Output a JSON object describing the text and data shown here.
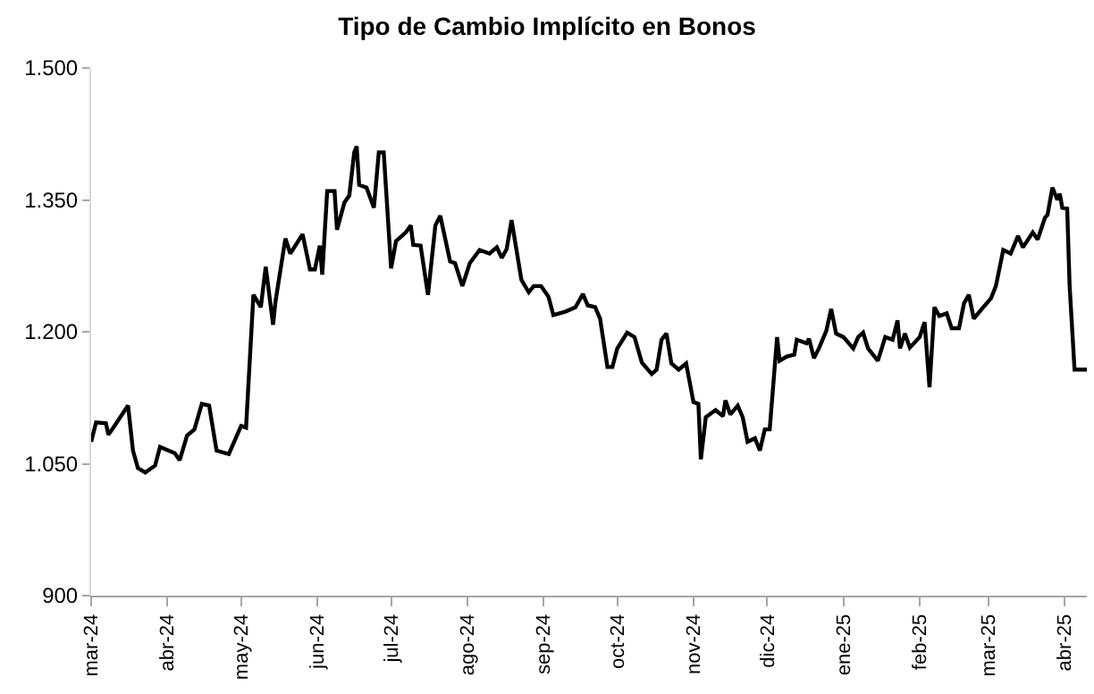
{
  "chart_data": {
    "type": "line",
    "title": "Tipo de Cambio Implícito en Bonos",
    "x": [
      "2024-03-01",
      "2024-03-03",
      "2024-03-07",
      "2024-03-08",
      "2024-03-10",
      "2024-03-16",
      "2024-03-18",
      "2024-03-20",
      "2024-03-23",
      "2024-03-27",
      "2024-03-29",
      "2024-04-04",
      "2024-04-06",
      "2024-04-09",
      "2024-04-12",
      "2024-04-15",
      "2024-04-18",
      "2024-04-21",
      "2024-04-26",
      "2024-05-01",
      "2024-05-03",
      "2024-05-06",
      "2024-05-09",
      "2024-05-11",
      "2024-05-14",
      "2024-05-15",
      "2024-05-19",
      "2024-05-21",
      "2024-05-26",
      "2024-05-29",
      "2024-05-31",
      "2024-06-02",
      "2024-06-03",
      "2024-06-05",
      "2024-06-08",
      "2024-06-09",
      "2024-06-12",
      "2024-06-14",
      "2024-06-16",
      "2024-06-17",
      "2024-06-18",
      "2024-06-21",
      "2024-06-24",
      "2024-06-26",
      "2024-06-28",
      "2024-07-01",
      "2024-07-03",
      "2024-07-07",
      "2024-07-09",
      "2024-07-10",
      "2024-07-13",
      "2024-07-16",
      "2024-07-19",
      "2024-07-21",
      "2024-07-25",
      "2024-07-27",
      "2024-07-30",
      "2024-08-02",
      "2024-08-06",
      "2024-08-10",
      "2024-08-13",
      "2024-08-15",
      "2024-08-17",
      "2024-08-19",
      "2024-08-23",
      "2024-08-26",
      "2024-08-28",
      "2024-08-31",
      "2024-09-03",
      "2024-09-05",
      "2024-09-10",
      "2024-09-14",
      "2024-09-17",
      "2024-09-19",
      "2024-09-22",
      "2024-09-24",
      "2024-09-27",
      "2024-09-29",
      "2024-10-01",
      "2024-10-05",
      "2024-10-08",
      "2024-10-11",
      "2024-10-15",
      "2024-10-17",
      "2024-10-19",
      "2024-10-21",
      "2024-10-23",
      "2024-10-26",
      "2024-10-29",
      "2024-11-01",
      "2024-11-03",
      "2024-11-04",
      "2024-11-06",
      "2024-11-10",
      "2024-11-13",
      "2024-11-14",
      "2024-11-16",
      "2024-11-19",
      "2024-11-21",
      "2024-11-23",
      "2024-11-26",
      "2024-11-28",
      "2024-11-30",
      "2024-12-02",
      "2024-12-05",
      "2024-12-06",
      "2024-12-09",
      "2024-12-12",
      "2024-12-13",
      "2024-12-17",
      "2024-12-18",
      "2024-12-20",
      "2024-12-22",
      "2024-12-25",
      "2024-12-27",
      "2024-12-29",
      "2025-01-01",
      "2025-01-05",
      "2025-01-07",
      "2025-01-09",
      "2025-01-11",
      "2025-01-15",
      "2025-01-18",
      "2025-01-21",
      "2025-01-23",
      "2025-01-24",
      "2025-01-26",
      "2025-01-28",
      "2025-02-01",
      "2025-02-03",
      "2025-02-05",
      "2025-02-07",
      "2025-02-09",
      "2025-02-12",
      "2025-02-14",
      "2025-02-17",
      "2025-02-19",
      "2025-02-21",
      "2025-02-23",
      "2025-02-26",
      "2025-03-02",
      "2025-03-04",
      "2025-03-07",
      "2025-03-10",
      "2025-03-13",
      "2025-03-15",
      "2025-03-19",
      "2025-03-21",
      "2025-03-24",
      "2025-03-25",
      "2025-03-27",
      "2025-03-29",
      "2025-03-30",
      "2025-03-31",
      "2025-04-02",
      "2025-04-03",
      "2025-04-05",
      "2025-04-10"
    ],
    "series": [
      {
        "color": "#000000",
        "values": [
          1075,
          1097,
          1096,
          1083,
          1091,
          1116,
          1065,
          1045,
          1040,
          1048,
          1069,
          1062,
          1054,
          1082,
          1089,
          1118,
          1116,
          1065,
          1061,
          1093,
          1091,
          1242,
          1228,
          1274,
          1208,
          1235,
          1306,
          1289,
          1311,
          1271,
          1271,
          1298,
          1265,
          1360,
          1360,
          1316,
          1347,
          1355,
          1404,
          1411,
          1367,
          1364,
          1341,
          1404,
          1404,
          1272,
          1303,
          1313,
          1321,
          1299,
          1298,
          1242,
          1321,
          1332,
          1280,
          1278,
          1252,
          1278,
          1293,
          1289,
          1296,
          1284,
          1294,
          1327,
          1259,
          1245,
          1252,
          1252,
          1240,
          1219,
          1223,
          1228,
          1243,
          1230,
          1228,
          1215,
          1160,
          1160,
          1181,
          1199,
          1194,
          1165,
          1152,
          1157,
          1191,
          1198,
          1164,
          1157,
          1164,
          1120,
          1118,
          1055,
          1103,
          1111,
          1104,
          1122,
          1106,
          1116,
          1103,
          1075,
          1079,
          1065,
          1089,
          1089,
          1194,
          1167,
          1172,
          1174,
          1191,
          1187,
          1192,
          1170,
          1181,
          1201,
          1226,
          1198,
          1194,
          1181,
          1194,
          1199,
          1181,
          1167,
          1194,
          1191,
          1213,
          1181,
          1198,
          1182,
          1194,
          1211,
          1137,
          1228,
          1218,
          1221,
          1204,
          1204,
          1232,
          1242,
          1215,
          1225,
          1238,
          1252,
          1293,
          1289,
          1309,
          1296,
          1313,
          1305,
          1330,
          1333,
          1364,
          1350,
          1357,
          1341,
          1340,
          1252,
          1157,
          1157
        ]
      }
    ],
    "xlim": [
      "2024-03-01",
      "2025-04-10"
    ],
    "xticks": [
      {
        "value": "2024-03-01",
        "label": "mar-24"
      },
      {
        "value": "2024-04-01",
        "label": "abr-24"
      },
      {
        "value": "2024-05-01",
        "label": "may-24"
      },
      {
        "value": "2024-06-01",
        "label": "jun-24"
      },
      {
        "value": "2024-07-01",
        "label": "jul-24"
      },
      {
        "value": "2024-08-01",
        "label": "ago-24"
      },
      {
        "value": "2024-09-01",
        "label": "sep-24"
      },
      {
        "value": "2024-10-01",
        "label": "oct-24"
      },
      {
        "value": "2024-11-01",
        "label": "nov-24"
      },
      {
        "value": "2024-12-01",
        "label": "dic-24"
      },
      {
        "value": "2025-01-01",
        "label": "ene-25"
      },
      {
        "value": "2025-02-01",
        "label": "feb-25"
      },
      {
        "value": "2025-03-01",
        "label": "mar-25"
      },
      {
        "value": "2025-04-01",
        "label": "abr-25"
      }
    ],
    "ylim": [
      900,
      1500
    ],
    "yticks": [
      900,
      {
        "value": 1050,
        "label": "1.050"
      },
      {
        "value": 1200,
        "label": "1.200"
      },
      {
        "value": 1350,
        "label": "1.350"
      },
      {
        "value": 1500,
        "label": "1.500"
      }
    ],
    "marker": "none",
    "line_style": "solid"
  }
}
